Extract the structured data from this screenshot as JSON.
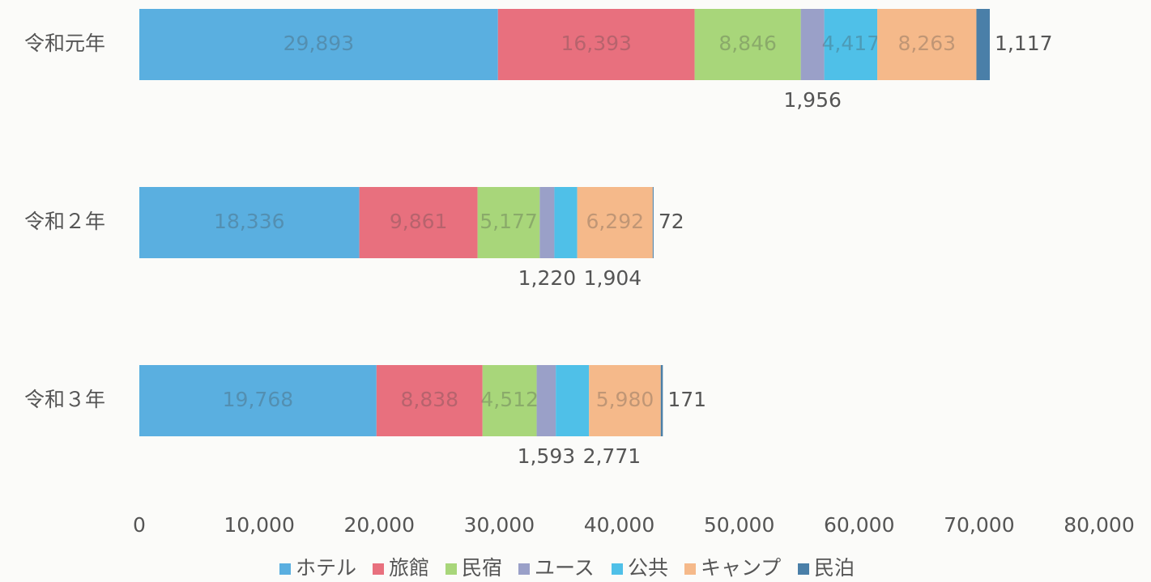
{
  "chart_data": {
    "type": "stacked-bar-horizontal",
    "categories": [
      "令和元年",
      "令和２年",
      "令和３年"
    ],
    "series": [
      {
        "name": "ホテル",
        "color": "#5aafe0",
        "values": [
          29893,
          18336,
          19768
        ],
        "value_labels": [
          "29,893",
          "18,336",
          "19,768"
        ]
      },
      {
        "name": "旅館",
        "color": "#e8707e",
        "values": [
          16393,
          9861,
          8838
        ],
        "value_labels": [
          "16,393",
          "9,861",
          "8,838"
        ]
      },
      {
        "name": "民宿",
        "color": "#a8d67a",
        "values": [
          8846,
          5177,
          4512
        ],
        "value_labels": [
          "8,846",
          "5,177",
          "4,512"
        ]
      },
      {
        "name": "ユース",
        "color": "#9aa0c8",
        "values": [
          1956,
          1220,
          1593
        ],
        "value_labels": [
          "1,956",
          "1,220",
          "1,593"
        ]
      },
      {
        "name": "公共",
        "color": "#4fc0e8",
        "values": [
          4417,
          1904,
          2771
        ],
        "value_labels": [
          "4,417",
          "1,904",
          "2,771"
        ]
      },
      {
        "name": "キャンプ",
        "color": "#f5b98a",
        "values": [
          8263,
          6292,
          5980
        ],
        "value_labels": [
          "8,263",
          "6,292",
          "5,980"
        ]
      },
      {
        "name": "民泊",
        "color": "#4a7fa8",
        "values": [
          1117,
          72,
          171
        ],
        "value_labels": [
          "1,117",
          "72",
          "171"
        ]
      }
    ],
    "xlim": [
      0,
      80000
    ],
    "xticks": [
      0,
      {
        "value": 10000,
        "label": "10,000"
      },
      {
        "value": 20000,
        "label": "20,000"
      },
      {
        "value": 30000,
        "label": "30,000"
      },
      {
        "value": 40000,
        "label": "40,000"
      },
      {
        "value": 50000,
        "label": "50,000"
      },
      {
        "value": 60000,
        "label": "60,000"
      },
      {
        "value": 70000,
        "label": "70,000"
      },
      {
        "value": 80000,
        "label": "80,000"
      }
    ],
    "legend": "bottom"
  }
}
